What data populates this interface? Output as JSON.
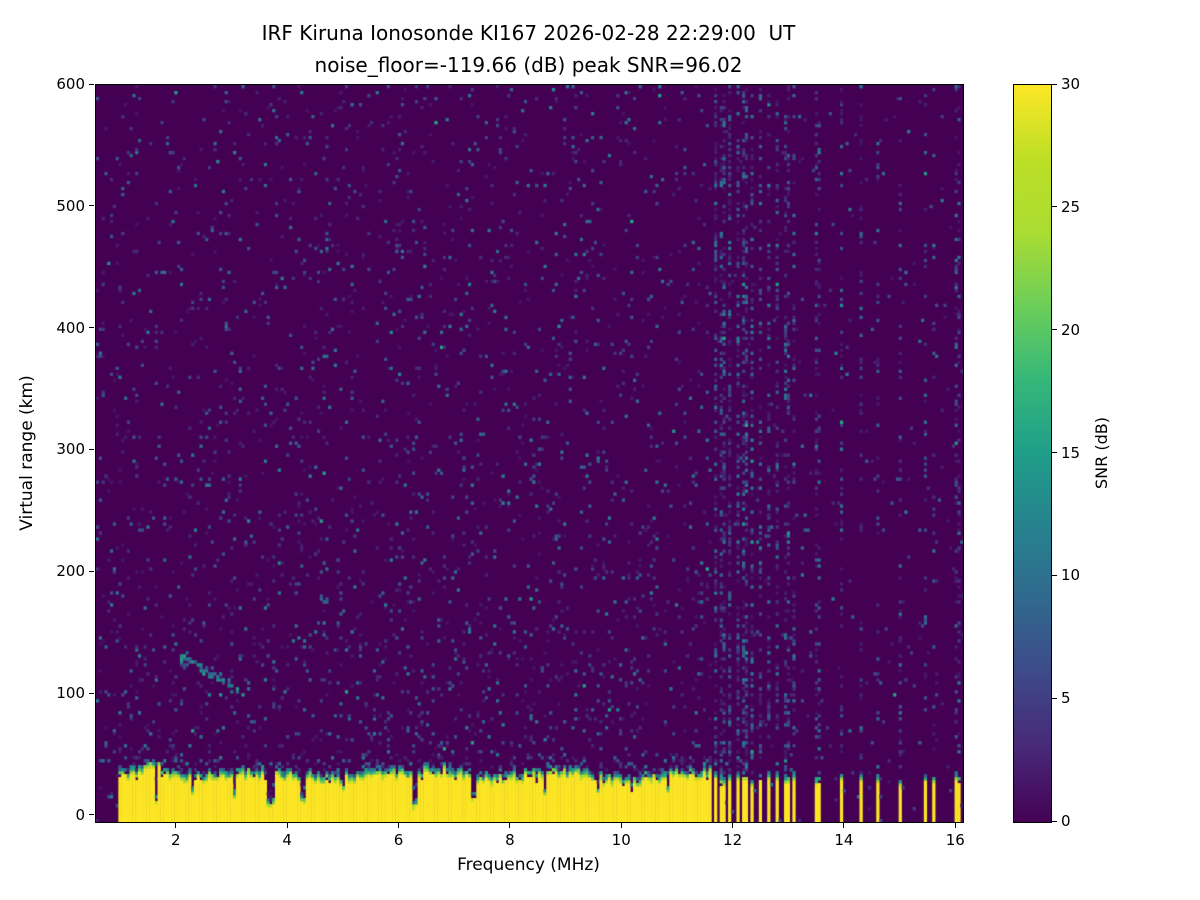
{
  "figure": {
    "title_line1": "IRF Kiruna Ionosonde KI167 2026-02-28 22:29:00  UT",
    "title_line2": "noise_floor=-119.66 (dB) peak SNR=96.02"
  },
  "chart_data": {
    "type": "heatmap",
    "title": "IRF Kiruna Ionosonde KI167 2026-02-28 22:29:00  UT",
    "subtitle": "noise_floor=-119.66 (dB) peak SNR=96.02",
    "station": "IRF Kiruna Ionosonde KI167",
    "timestamp_ut": "2026-02-28 22:29:00",
    "noise_floor_db": -119.66,
    "peak_snr_db": 96.02,
    "xlabel": "Frequency (MHz)",
    "ylabel": "Virtual range (km)",
    "xlim": [
      0.55,
      16.12
    ],
    "ylim": [
      -5,
      600
    ],
    "xticks": [
      2,
      4,
      6,
      8,
      10,
      12,
      14,
      16
    ],
    "yticks": [
      0,
      100,
      200,
      300,
      400,
      500,
      600
    ],
    "grid_on": false,
    "colorbar": {
      "label": "SNR (dB)",
      "ticks": [
        0,
        5,
        10,
        15,
        20,
        25,
        30
      ],
      "lim": [
        0,
        30
      ],
      "colormap": "viridis"
    },
    "colormap_stops": [
      [
        0.0,
        "#440154"
      ],
      [
        0.1,
        "#482878"
      ],
      [
        0.2,
        "#3e4989"
      ],
      [
        0.3,
        "#31688e"
      ],
      [
        0.4,
        "#26828e"
      ],
      [
        0.5,
        "#1f9e89"
      ],
      [
        0.6,
        "#35b779"
      ],
      [
        0.7,
        "#6cce59"
      ],
      [
        0.8,
        "#aadc32"
      ],
      [
        0.9,
        "#bddf26"
      ],
      [
        1.0,
        "#fde725"
      ]
    ],
    "background_snr": 0,
    "grid": {
      "ncols": 310,
      "nrows": 246
    },
    "seed": 20260228,
    "ground_band": {
      "freq_range_mhz": [
        0.95,
        11.6
      ],
      "mean_top_km": 30,
      "top_jitter_km": 7,
      "fringe_km": 7,
      "snr": 30,
      "bumps": [
        {
          "f": 1.55,
          "w": 0.35,
          "h": 14
        },
        {
          "f": 6.8,
          "w": 0.5,
          "h": 5
        },
        {
          "f": 9.9,
          "w": 0.7,
          "h": -5
        }
      ],
      "notches": [
        {
          "f": 1.63,
          "w": 0.1,
          "top": 10
        },
        {
          "f": 2.3,
          "w": 0.06,
          "top": 16
        },
        {
          "f": 3.03,
          "w": 0.08,
          "top": 12
        },
        {
          "f": 3.68,
          "w": 0.12,
          "top": 6
        },
        {
          "f": 4.28,
          "w": 0.09,
          "top": 9
        },
        {
          "f": 5.0,
          "w": 0.05,
          "top": 18
        },
        {
          "f": 6.28,
          "w": 0.1,
          "top": 5
        },
        {
          "f": 7.32,
          "w": 0.08,
          "top": 11
        },
        {
          "f": 8.6,
          "w": 0.05,
          "top": 16
        },
        {
          "f": 9.55,
          "w": 0.05,
          "top": 17
        },
        {
          "f": 10.15,
          "w": 0.05,
          "top": 18
        },
        {
          "f": 10.8,
          "w": 0.05,
          "top": 17
        }
      ]
    },
    "stripes": [
      {
        "f": 11.67,
        "w": 0.07,
        "noise": 0.45
      },
      {
        "f": 11.8,
        "w": 0.06,
        "noise": 0.4
      },
      {
        "f": 11.93,
        "w": 0.07,
        "noise": 0.45
      },
      {
        "f": 12.07,
        "w": 0.06,
        "noise": 0.35
      },
      {
        "f": 12.2,
        "w": 0.07,
        "noise": 0.4
      },
      {
        "f": 12.34,
        "w": 0.06,
        "noise": 0.35
      },
      {
        "f": 12.48,
        "w": 0.06,
        "noise": 0.3
      },
      {
        "f": 12.62,
        "w": 0.07,
        "noise": 0.3
      },
      {
        "f": 12.78,
        "w": 0.06,
        "noise": 0.3
      },
      {
        "f": 12.95,
        "w": 0.07,
        "noise": 0.3
      },
      {
        "f": 13.1,
        "w": 0.05,
        "noise": 0.25
      },
      {
        "f": 13.5,
        "w": 0.07,
        "noise": 0.22
      },
      {
        "f": 13.95,
        "w": 0.07,
        "noise": 0.22
      },
      {
        "f": 14.3,
        "w": 0.05,
        "noise": 0.18
      },
      {
        "f": 14.6,
        "w": 0.05,
        "noise": 0.15
      },
      {
        "f": 15.0,
        "w": 0.07,
        "noise": 0.18
      },
      {
        "f": 15.45,
        "w": 0.06,
        "noise": 0.15
      },
      {
        "f": 15.6,
        "w": 0.05,
        "noise": 0.12
      },
      {
        "f": 16.02,
        "w": 0.09,
        "noise": 0.18
      }
    ],
    "speckle": {
      "base_prob": 0.048,
      "right_region_start_mhz": 11.6,
      "right_region_factor": 0.28,
      "low_range_boost_below_km": 150,
      "low_range_boost": 1.25,
      "value_min": 1.5,
      "value_spread": 10
    },
    "echo_traces": [
      {
        "x0": 2.05,
        "x1": 3.2,
        "y0": 130,
        "y1": 102,
        "p": 0.45,
        "vmin": 6,
        "vmax": 16
      },
      {
        "x0": 9.3,
        "x1": 10.4,
        "y0": 120,
        "y1": 100,
        "p": 0.12,
        "vmin": 4,
        "vmax": 10
      }
    ]
  }
}
